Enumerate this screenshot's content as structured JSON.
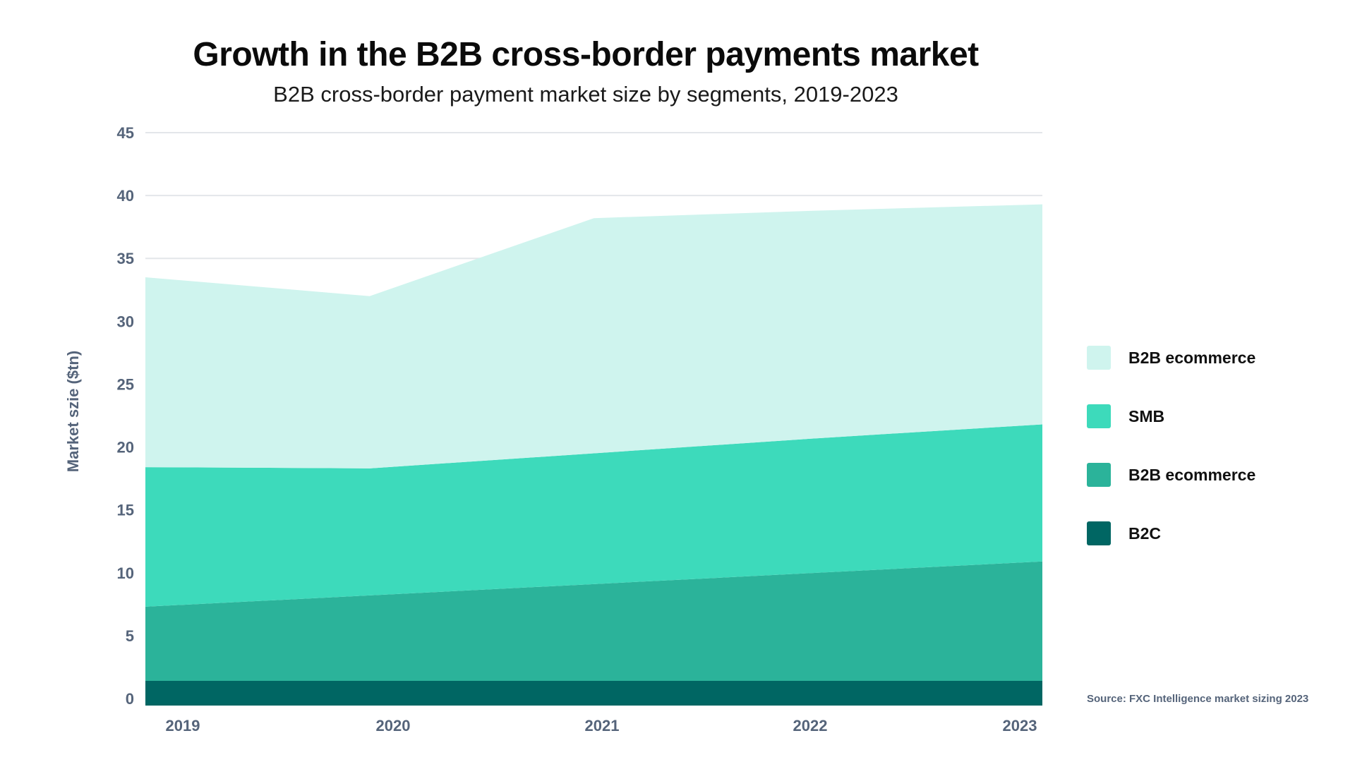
{
  "header": {
    "title": "Growth in the B2B cross-border payments market",
    "subtitle": "B2B cross-border payment market size by segments, 2019-2023"
  },
  "footer": {
    "source": "Source: FXC Intelligence market sizing 2023"
  },
  "chart_data": {
    "type": "area",
    "stacked": true,
    "title": "Growth in the B2B cross-border payments market",
    "subtitle": "B2B cross-border payment market size by segments, 2019-2023",
    "xlabel": "",
    "ylabel": "Market szie ($tn)",
    "categories": [
      "2019",
      "2020",
      "2021",
      "2022",
      "2023"
    ],
    "ylim": [
      0,
      45
    ],
    "yticks": [
      0,
      5,
      10,
      15,
      20,
      25,
      30,
      35,
      40,
      45
    ],
    "grid": true,
    "legend_position": "right",
    "series": [
      {
        "name": "B2C",
        "color": "#006663",
        "values": [
          1.4,
          1.4,
          1.4,
          1.4,
          1.4
        ]
      },
      {
        "name": "B2B ecommerce",
        "color": "#2bb39a",
        "values": [
          5.9,
          6.8,
          7.7,
          8.6,
          9.5
        ]
      },
      {
        "name": "SMB",
        "color": "#3ddabb",
        "values": [
          11.1,
          10.1,
          10.4,
          10.7,
          10.9
        ]
      },
      {
        "name": "B2B ecommerce",
        "color": "#cff4ee",
        "values": [
          15.1,
          13.7,
          18.7,
          18.1,
          17.5
        ]
      }
    ],
    "legend": [
      {
        "label": "B2B ecommerce",
        "color": "#cff4ee"
      },
      {
        "label": "SMB",
        "color": "#3ddabb"
      },
      {
        "label": "B2B ecommerce",
        "color": "#2bb39a"
      },
      {
        "label": "B2C",
        "color": "#006663"
      }
    ]
  }
}
